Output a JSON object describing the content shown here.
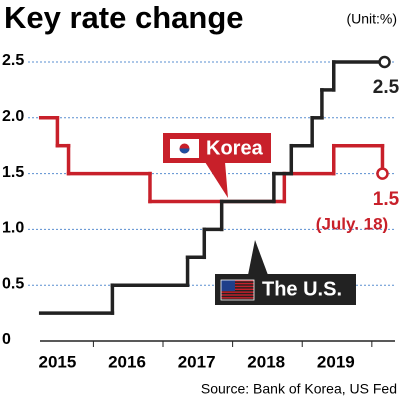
{
  "chart_data": {
    "type": "step",
    "title": "Key rate change",
    "unit": "(Unit:%)",
    "source": "Source: Bank of Korea, US Fed",
    "xlim": [
      2014.75,
      2019.85
    ],
    "xticks": [
      2015,
      2016,
      2017,
      2018,
      2019
    ],
    "ylim": [
      0,
      2.5
    ],
    "yticks": [
      0,
      0.5,
      {
        "value": 1,
        "label": "1.0"
      },
      1.5,
      {
        "value": 2,
        "label": "2.0"
      },
      2.5
    ],
    "grid": true,
    "series": [
      {
        "name": "Korea",
        "color": "#c8202a",
        "x": [
          2014.76,
          2015.0,
          2015.16,
          2016.33,
          2018.26,
          2018.97,
          2019.67
        ],
        "values": [
          2,
          1.75,
          1.5,
          1.25,
          1.5,
          1.75,
          1.5
        ],
        "end_note": "(July. 18)"
      },
      {
        "name": "The U.S.",
        "color": "#222222",
        "x": [
          2014.76,
          2015.79,
          2016.87,
          2017.11,
          2017.36,
          2018.11,
          2018.36,
          2018.66,
          2018.8,
          2018.97,
          2019.7
        ],
        "values": [
          0.25,
          0.5,
          0.75,
          1,
          1.25,
          1.5,
          1.75,
          2,
          2.25,
          2.5,
          2.5
        ]
      }
    ]
  }
}
